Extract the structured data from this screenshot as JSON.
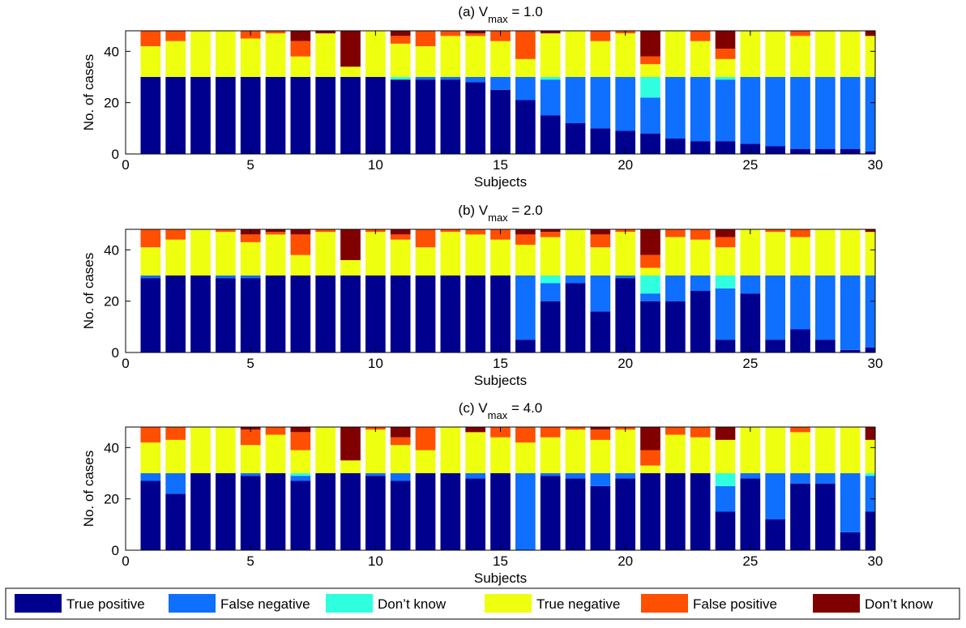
{
  "legend": {
    "entries": [
      {
        "label": "True positive",
        "color": "#00008F"
      },
      {
        "label": "False negative",
        "color": "#0F6FFF"
      },
      {
        "label": "Don’t know",
        "color": "#2FFFDF"
      },
      {
        "label": "True negative",
        "color": "#EFFF10"
      },
      {
        "label": "False positive",
        "color": "#FF4F00"
      },
      {
        "label": "Don’t know",
        "color": "#800000"
      }
    ]
  },
  "chart_data": [
    {
      "type": "bar",
      "stacked": true,
      "title_prefix": "(a) V",
      "title_sub": "max",
      "title_suffix": " = 1.0",
      "xlabel": "Subjects",
      "ylabel": "No. of cases",
      "xlim": [
        0,
        30
      ],
      "ylim": [
        0,
        48
      ],
      "xticks": [
        0,
        5,
        10,
        15,
        20,
        25,
        30
      ],
      "yticks": [
        0,
        20,
        40
      ],
      "x": [
        1,
        2,
        3,
        4,
        5,
        6,
        7,
        8,
        9,
        10,
        11,
        12,
        13,
        14,
        15,
        16,
        17,
        18,
        19,
        20,
        21,
        22,
        23,
        24,
        25,
        26,
        27,
        28,
        29,
        30
      ],
      "series": [
        {
          "name": "True positive",
          "values": [
            30,
            30,
            30,
            30,
            30,
            30,
            30,
            30,
            30,
            30,
            29,
            29,
            29,
            28,
            25,
            21,
            15,
            12,
            10,
            9,
            8,
            6,
            5,
            5,
            4,
            3,
            2,
            2,
            2,
            1
          ]
        },
        {
          "name": "False negative",
          "values": [
            0,
            0,
            0,
            0,
            0,
            0,
            0,
            0,
            0,
            0,
            0,
            1,
            1,
            2,
            5,
            9,
            14,
            18,
            20,
            21,
            14,
            24,
            25,
            24,
            26,
            27,
            28,
            28,
            28,
            29
          ]
        },
        {
          "name": "Don’t know",
          "values": [
            0,
            0,
            0,
            0,
            0,
            0,
            0,
            0,
            0,
            0,
            1,
            0,
            0,
            0,
            0,
            0,
            1,
            0,
            0,
            0,
            8,
            0,
            0,
            1,
            0,
            0,
            0,
            0,
            0,
            0
          ]
        },
        {
          "name": "True negative",
          "values": [
            12,
            14,
            18,
            18,
            15,
            17,
            8,
            17,
            4,
            18,
            13,
            12,
            16,
            16,
            14,
            7,
            17,
            18,
            14,
            17,
            5,
            18,
            14,
            7,
            18,
            18,
            16,
            18,
            18,
            16
          ]
        },
        {
          "name": "False positive",
          "values": [
            6,
            4,
            0,
            0,
            3,
            1,
            6,
            0,
            0,
            0,
            3,
            6,
            2,
            1,
            4,
            11,
            0,
            0,
            4,
            1,
            3,
            0,
            4,
            4,
            0,
            0,
            2,
            0,
            0,
            0
          ]
        },
        {
          "name": "Don’t know",
          "values": [
            0,
            0,
            0,
            0,
            0,
            0,
            4,
            1,
            14,
            0,
            2,
            0,
            0,
            1,
            0,
            0,
            1,
            0,
            0,
            0,
            10,
            0,
            0,
            7,
            0,
            0,
            0,
            0,
            0,
            2
          ]
        }
      ]
    },
    {
      "type": "bar",
      "stacked": true,
      "title_prefix": "(b) V",
      "title_sub": "max",
      "title_suffix": " = 2.0",
      "xlabel": "Subjects",
      "ylabel": "No. of cases",
      "xlim": [
        0,
        30
      ],
      "ylim": [
        0,
        48
      ],
      "xticks": [
        0,
        5,
        10,
        15,
        20,
        25,
        30
      ],
      "yticks": [
        0,
        20,
        40
      ],
      "x": [
        1,
        2,
        3,
        4,
        5,
        6,
        7,
        8,
        9,
        10,
        11,
        12,
        13,
        14,
        15,
        16,
        17,
        18,
        19,
        20,
        21,
        22,
        23,
        24,
        25,
        26,
        27,
        28,
        29,
        30
      ],
      "series": [
        {
          "name": "True positive",
          "values": [
            29,
            30,
            30,
            29,
            29,
            30,
            30,
            30,
            30,
            30,
            30,
            30,
            30,
            30,
            30,
            5,
            20,
            27,
            16,
            29,
            20,
            20,
            24,
            5,
            23,
            5,
            9,
            5,
            1,
            2
          ]
        },
        {
          "name": "False negative",
          "values": [
            1,
            0,
            0,
            1,
            1,
            0,
            0,
            0,
            0,
            0,
            0,
            0,
            0,
            0,
            0,
            25,
            7,
            3,
            14,
            1,
            3,
            10,
            6,
            20,
            7,
            25,
            21,
            25,
            29,
            28
          ]
        },
        {
          "name": "Don’t know",
          "values": [
            0,
            0,
            0,
            0,
            0,
            0,
            0,
            0,
            0,
            0,
            0,
            0,
            0,
            0,
            0,
            0,
            3,
            0,
            0,
            0,
            7,
            0,
            0,
            5,
            0,
            0,
            0,
            0,
            0,
            0
          ]
        },
        {
          "name": "True negative",
          "values": [
            11,
            14,
            18,
            17,
            13,
            16,
            8,
            17,
            6,
            17,
            14,
            11,
            17,
            16,
            14,
            12,
            15,
            18,
            11,
            17,
            3,
            15,
            14,
            11,
            18,
            17,
            15,
            18,
            18,
            17
          ]
        },
        {
          "name": "False positive",
          "values": [
            7,
            4,
            0,
            1,
            3,
            1,
            8,
            1,
            0,
            1,
            2,
            7,
            1,
            2,
            4,
            4,
            2,
            0,
            5,
            1,
            5,
            3,
            4,
            4,
            0,
            1,
            3,
            0,
            0,
            0
          ]
        },
        {
          "name": "Don’t know",
          "values": [
            0,
            0,
            0,
            0,
            2,
            1,
            2,
            0,
            12,
            0,
            2,
            0,
            0,
            0,
            0,
            2,
            1,
            0,
            2,
            0,
            10,
            0,
            0,
            3,
            0,
            0,
            0,
            0,
            0,
            1
          ]
        }
      ]
    },
    {
      "type": "bar",
      "stacked": true,
      "title_prefix": "(c) V",
      "title_sub": "max",
      "title_suffix": " = 4.0",
      "xlabel": "Subjects",
      "ylabel": "No. of cases",
      "xlim": [
        0,
        30
      ],
      "ylim": [
        0,
        48
      ],
      "xticks": [
        0,
        5,
        10,
        15,
        20,
        25,
        30
      ],
      "yticks": [
        0,
        20,
        40
      ],
      "x": [
        1,
        2,
        3,
        4,
        5,
        6,
        7,
        8,
        9,
        10,
        11,
        12,
        13,
        14,
        15,
        16,
        17,
        18,
        19,
        20,
        21,
        22,
        23,
        24,
        25,
        26,
        27,
        28,
        29,
        30
      ],
      "series": [
        {
          "name": "True positive",
          "values": [
            27,
            22,
            30,
            30,
            29,
            30,
            27,
            30,
            30,
            29,
            27,
            30,
            30,
            28,
            30,
            0,
            29,
            28,
            25,
            28,
            30,
            30,
            30,
            15,
            28,
            12,
            26,
            26,
            7,
            15
          ]
        },
        {
          "name": "False negative",
          "values": [
            3,
            8,
            0,
            0,
            1,
            0,
            2,
            0,
            0,
            1,
            3,
            0,
            0,
            2,
            0,
            30,
            1,
            2,
            5,
            2,
            0,
            0,
            0,
            10,
            2,
            18,
            4,
            4,
            23,
            14
          ]
        },
        {
          "name": "Don’t know",
          "values": [
            0,
            0,
            0,
            0,
            0,
            0,
            1,
            0,
            0,
            0,
            0,
            0,
            0,
            0,
            0,
            0,
            0,
            0,
            0,
            0,
            0,
            0,
            0,
            5,
            0,
            0,
            0,
            0,
            0,
            1
          ]
        },
        {
          "name": "True negative",
          "values": [
            12,
            13,
            18,
            18,
            11,
            15,
            9,
            18,
            5,
            17,
            11,
            9,
            18,
            16,
            14,
            12,
            14,
            17,
            13,
            17,
            3,
            15,
            14,
            13,
            18,
            18,
            16,
            18,
            18,
            13
          ]
        },
        {
          "name": "False positive",
          "values": [
            6,
            5,
            0,
            0,
            6,
            3,
            7,
            0,
            0,
            1,
            3,
            9,
            0,
            0,
            4,
            6,
            4,
            1,
            4,
            1,
            6,
            3,
            4,
            0,
            0,
            0,
            2,
            0,
            0,
            0
          ]
        },
        {
          "name": "Don’t know",
          "values": [
            0,
            0,
            0,
            0,
            1,
            0,
            3,
            0,
            13,
            0,
            4,
            0,
            0,
            2,
            0,
            0,
            0,
            0,
            1,
            0,
            9,
            0,
            0,
            5,
            0,
            0,
            0,
            0,
            0,
            5
          ]
        }
      ]
    }
  ]
}
